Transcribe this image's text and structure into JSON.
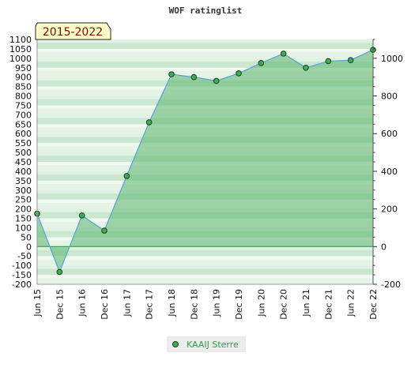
{
  "chart_data": {
    "type": "area",
    "title": "WOF ratinglist",
    "period_label": "2015-2022",
    "x": [
      "Jun 15",
      "Dec 15",
      "Jun 16",
      "Dec 16",
      "Jun 17",
      "Dec 17",
      "Jun 18",
      "Dec 18",
      "Jun 19",
      "Dec 19",
      "Jun 20",
      "Dec 20",
      "Jun 21",
      "Dec 21",
      "Jun 22",
      "Dec 22"
    ],
    "series": [
      {
        "name": "KAAIJ Sterre",
        "values": [
          175,
          -135,
          165,
          85,
          375,
          660,
          915,
          900,
          880,
          920,
          975,
          1025,
          950,
          985,
          990,
          1045
        ],
        "line_color": "#5aa0d8",
        "fill_color": "#5ab56e",
        "marker_color": "#3cb050"
      }
    ],
    "y_left": {
      "range": [
        -200,
        1100
      ],
      "ticks": [
        -200,
        -150,
        -100,
        -50,
        0,
        50,
        100,
        150,
        200,
        250,
        300,
        350,
        400,
        450,
        500,
        550,
        600,
        650,
        700,
        750,
        800,
        850,
        900,
        950,
        1000,
        1050,
        1100
      ]
    },
    "y_right": {
      "range": [
        -200,
        1100
      ],
      "ticks": [
        -200,
        0,
        200,
        400,
        600,
        800,
        1000
      ]
    },
    "grid": "banded",
    "legend": "bottom-center"
  }
}
